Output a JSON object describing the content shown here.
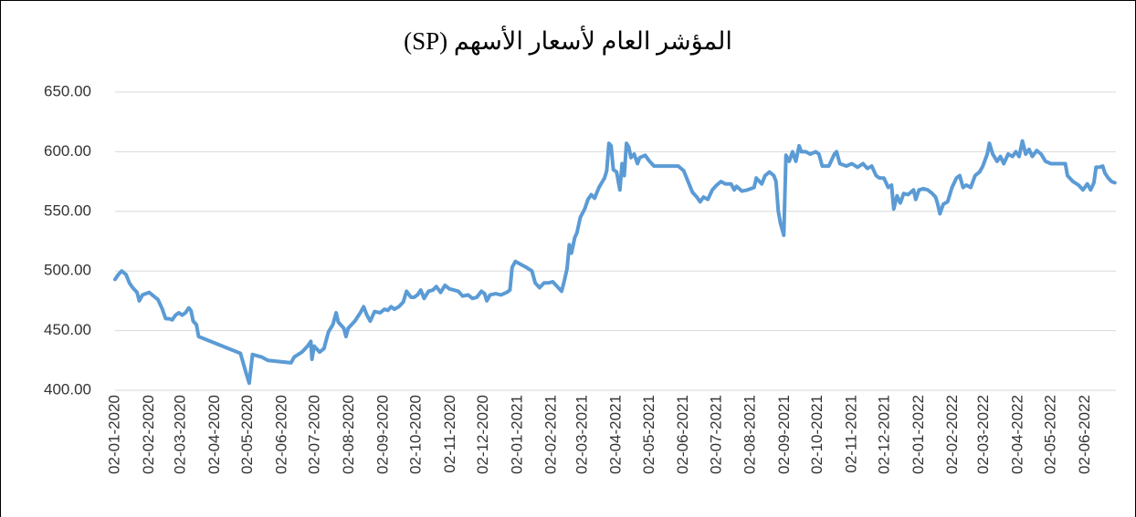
{
  "chart_data": {
    "type": "line",
    "title": "المؤشر العام لأسعار الأسهم (SP)",
    "color": "#5b9bd5",
    "grid": true,
    "ylim": [
      400,
      650
    ],
    "yticks": [
      {
        "value": 400,
        "label": "400.00"
      },
      {
        "value": 450,
        "label": "450.00"
      },
      {
        "value": 500,
        "label": "500.00"
      },
      {
        "value": 550,
        "label": "550.00"
      },
      {
        "value": 600,
        "label": "600.00"
      },
      {
        "value": 650,
        "label": "650.00"
      }
    ],
    "xlim": [
      "02-01-2020",
      "30-06-2022"
    ],
    "xticks": [
      "02-01-2020",
      "02-02-2020",
      "02-03-2020",
      "02-04-2020",
      "02-05-2020",
      "02-06-2020",
      "02-07-2020",
      "02-08-2020",
      "02-09-2020",
      "02-10-2020",
      "02-11-2020",
      "02-12-2020",
      "02-01-2021",
      "02-02-2021",
      "02-03-2021",
      "02-04-2021",
      "02-05-2021",
      "02-06-2021",
      "02-07-2021",
      "02-08-2021",
      "02-09-2021",
      "02-10-2021",
      "02-11-2021",
      "02-12-2021",
      "02-01-2022",
      "02-02-2022",
      "02-03-2022",
      "02-04-2022",
      "02-05-2022",
      "02-06-2022"
    ],
    "x": [
      "02-01-2020",
      "05-01-2020",
      "08-01-2020",
      "12-01-2020",
      "15-01-2020",
      "18-01-2020",
      "22-01-2020",
      "24-01-2020",
      "27-01-2020",
      "02-02-2020",
      "06-02-2020",
      "10-02-2020",
      "14-02-2020",
      "17-02-2020",
      "20-02-2020",
      "23-02-2020",
      "26-02-2020",
      "29-02-2020",
      "03-03-2020",
      "06-03-2020",
      "09-03-2020",
      "11-03-2020",
      "13-03-2020",
      "16-03-2020",
      "18-03-2020",
      "25-04-2020",
      "30-04-2020",
      "03-05-2020",
      "06-05-2020",
      "14-05-2020",
      "20-05-2020",
      "10-06-2020",
      "13-06-2020",
      "20-06-2020",
      "25-06-2020",
      "28-06-2020",
      "29-06-2020",
      "01-07-2020",
      "06-07-2020",
      "10-07-2020",
      "14-07-2020",
      "18-07-2020",
      "21-07-2020",
      "23-07-2020",
      "28-07-2020",
      "30-07-2020",
      "01-08-2020",
      "07-08-2020",
      "12-08-2020",
      "15-08-2020",
      "18-08-2020",
      "21-08-2020",
      "25-08-2020",
      "30-08-2020",
      "03-09-2020",
      "06-09-2020",
      "09-09-2020",
      "12-09-2020",
      "16-09-2020",
      "20-09-2020",
      "23-09-2020",
      "27-09-2020",
      "30-09-2020",
      "03-10-2020",
      "06-10-2020",
      "09-10-2020",
      "13-10-2020",
      "17-10-2020",
      "20-10-2020",
      "24-10-2020",
      "28-10-2020",
      "01-11-2020",
      "05-11-2020",
      "09-11-2020",
      "13-11-2020",
      "18-11-2020",
      "22-11-2020",
      "26-11-2020",
      "30-11-2020",
      "03-12-2020",
      "05-12-2020",
      "08-12-2020",
      "13-12-2020",
      "18-12-2020",
      "23-12-2020",
      "26-12-2020",
      "28-12-2020",
      "31-12-2020",
      "04-01-2021",
      "10-01-2021",
      "15-01-2021",
      "18-01-2021",
      "22-01-2021",
      "26-01-2021",
      "30-01-2021",
      "03-02-2021",
      "07-02-2021",
      "11-02-2021",
      "13-02-2021",
      "16-02-2021",
      "18-02-2021",
      "20-02-2021",
      "23-02-2021",
      "25-02-2021",
      "28-02-2021",
      "04-03-2021",
      "07-03-2021",
      "10-03-2021",
      "13-03-2021",
      "17-03-2021",
      "22-03-2021",
      "24-03-2021",
      "26-03-2021",
      "28-03-2021",
      "30-03-2021",
      "02-04-2021",
      "05-04-2021",
      "07-04-2021",
      "09-04-2021",
      "11-04-2021",
      "13-04-2021",
      "15-04-2021",
      "18-04-2021",
      "21-04-2021",
      "23-04-2021",
      "28-04-2021",
      "02-05-2021",
      "06-05-2021",
      "10-05-2021",
      "20-05-2021",
      "28-05-2021",
      "02-06-2021",
      "06-06-2021",
      "10-06-2021",
      "14-06-2021",
      "17-06-2021",
      "20-06-2021",
      "24-06-2021",
      "28-06-2021",
      "02-07-2021",
      "06-07-2021",
      "10-07-2021",
      "15-07-2021",
      "18-07-2021",
      "20-07-2021",
      "25-07-2021",
      "30-07-2021",
      "05-08-2021",
      "07-08-2021",
      "10-08-2021",
      "12-08-2021",
      "15-08-2021",
      "19-08-2021",
      "23-08-2021",
      "25-08-2021",
      "27-08-2021",
      "29-08-2021",
      "01-09-2021",
      "03-09-2021",
      "06-09-2021",
      "09-09-2021",
      "12-09-2021",
      "15-09-2021",
      "17-09-2021",
      "21-09-2021",
      "25-09-2021",
      "30-09-2021",
      "03-10-2021",
      "06-10-2021",
      "12-10-2021",
      "17-10-2021",
      "19-10-2021",
      "22-10-2021",
      "28-10-2021",
      "02-11-2021",
      "07-11-2021",
      "12-11-2021",
      "16-11-2021",
      "20-11-2021",
      "24-11-2021",
      "27-11-2021",
      "01-12-2021",
      "05-12-2021",
      "08-12-2021",
      "10-12-2021",
      "13-12-2021",
      "16-12-2021",
      "19-12-2021",
      "23-12-2021",
      "28-12-2021",
      "30-12-2021",
      "02-01-2022",
      "06-01-2022",
      "10-01-2022",
      "14-01-2022",
      "17-01-2022",
      "19-01-2022",
      "21-01-2022",
      "24-01-2022",
      "28-01-2022",
      "01-02-2022",
      "05-02-2022",
      "08-02-2022",
      "11-02-2022",
      "14-02-2022",
      "18-02-2022",
      "22-02-2022",
      "26-02-2022",
      "01-03-2022",
      "05-03-2022",
      "07-03-2022",
      "10-03-2022",
      "14-03-2022",
      "17-03-2022",
      "20-03-2022",
      "24-03-2022",
      "28-03-2022",
      "31-03-2022",
      "03-04-2022",
      "06-04-2022",
      "09-04-2022",
      "12-04-2022",
      "15-04-2022",
      "19-04-2022",
      "23-04-2022",
      "27-04-2022",
      "02-05-2022",
      "10-05-2022",
      "15-05-2022",
      "17-05-2022",
      "22-05-2022",
      "27-05-2022",
      "31-05-2022",
      "04-06-2022",
      "07-06-2022",
      "10-06-2022",
      "12-06-2022",
      "15-06-2022",
      "18-06-2022",
      "20-06-2022",
      "23-06-2022",
      "26-06-2022",
      "29-06-2022"
    ],
    "values": [
      493,
      497,
      500,
      497,
      490,
      486,
      482,
      475,
      480,
      482,
      479,
      476,
      468,
      460,
      460,
      459,
      463,
      465,
      463,
      465,
      469,
      467,
      458,
      455,
      445,
      431,
      415,
      406,
      430,
      428,
      425,
      423,
      428,
      432,
      437,
      441,
      426,
      437,
      432,
      435,
      449,
      455,
      465,
      457,
      452,
      445,
      452,
      458,
      465,
      470,
      463,
      458,
      466,
      465,
      468,
      467,
      470,
      468,
      470,
      474,
      483,
      478,
      478,
      480,
      484,
      477,
      483,
      484,
      487,
      482,
      488,
      485,
      484,
      483,
      479,
      480,
      477,
      478,
      483,
      481,
      475,
      480,
      481,
      480,
      482,
      484,
      503,
      508,
      506,
      503,
      500,
      490,
      486,
      490,
      490,
      491,
      487,
      483,
      490,
      502,
      522,
      515,
      528,
      532,
      545,
      552,
      560,
      564,
      561,
      570,
      578,
      584,
      607,
      605,
      585,
      583,
      568,
      590,
      580,
      607,
      604,
      595,
      598,
      590,
      595,
      597,
      592,
      588,
      588,
      588,
      588,
      584,
      575,
      566,
      562,
      558,
      562,
      560,
      568,
      572,
      575,
      573,
      573,
      568,
      571,
      567,
      568,
      570,
      578,
      575,
      573,
      580,
      583,
      580,
      575,
      550,
      540,
      530,
      597,
      592,
      600,
      592,
      605,
      600,
      600,
      598,
      600,
      598,
      588,
      588,
      598,
      600,
      590,
      588,
      590,
      587,
      590,
      586,
      588,
      580,
      578,
      578,
      570,
      572,
      552,
      563,
      557,
      565,
      564,
      568,
      560,
      568,
      569,
      568,
      565,
      562,
      556,
      548,
      556,
      558,
      570,
      578,
      580,
      570,
      572,
      570,
      580,
      583,
      588,
      598,
      607,
      598,
      592,
      596,
      590,
      598,
      596,
      600,
      596,
      609,
      598,
      602,
      596,
      601,
      598,
      592,
      590,
      590,
      590,
      580,
      575,
      572,
      568,
      573,
      568,
      574,
      587,
      587,
      588,
      582,
      578,
      575,
      574
    ]
  }
}
